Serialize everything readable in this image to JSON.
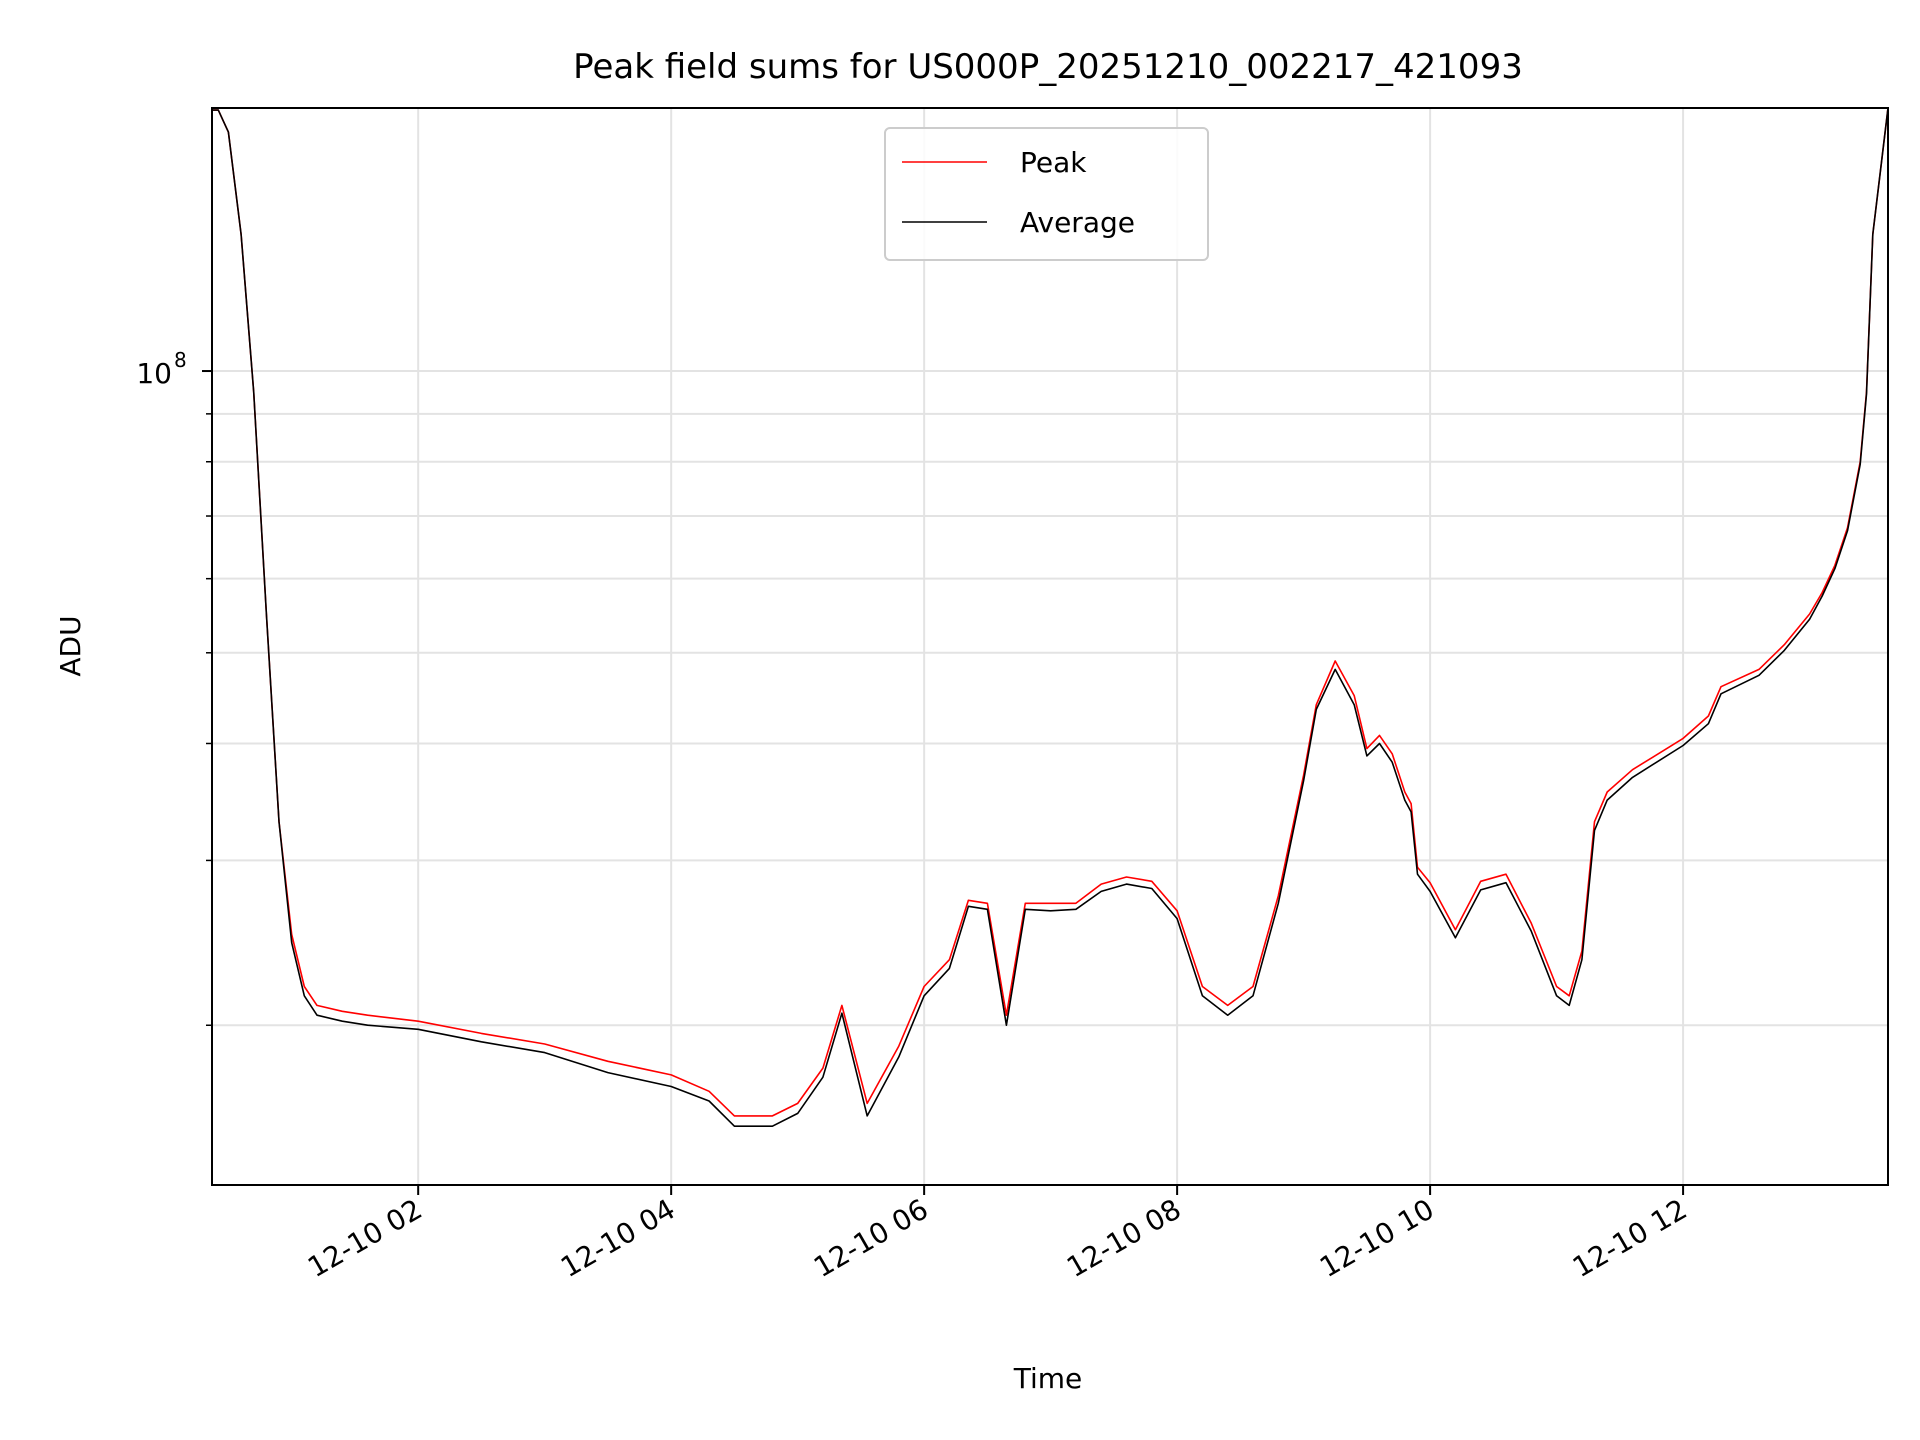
{
  "chart_data": {
    "type": "line",
    "title": "Peak field sums for US000P_20251210_002217_421093",
    "xlabel": "Time",
    "ylabel": "ADU",
    "x_unit": "hours since 12-10 00:00",
    "xlim": [
      0.37,
      13.62
    ],
    "y_scale": "log",
    "ylim": [
      13500000,
      191000000
    ],
    "grid": true,
    "legend_position": "top-center",
    "x_ticks": [
      {
        "value": 2,
        "label": "12-10 02"
      },
      {
        "value": 4,
        "label": "12-10 04"
      },
      {
        "value": 6,
        "label": "12-10 06"
      },
      {
        "value": 8,
        "label": "12-10 08"
      },
      {
        "value": 10,
        "label": "12-10 10"
      },
      {
        "value": 12,
        "label": "12-10 12"
      }
    ],
    "y_major_ticks": [
      {
        "value": 100000000,
        "base": "10",
        "exponent": "8"
      }
    ],
    "y_minor_ticks": [
      20000000,
      30000000,
      40000000,
      50000000,
      60000000,
      70000000,
      80000000,
      90000000,
      200000000
    ],
    "series": [
      {
        "name": "Peak",
        "color": "#ff0000",
        "x": [
          0.37,
          0.42,
          0.5,
          0.6,
          0.7,
          0.8,
          0.9,
          1.0,
          1.1,
          1.2,
          1.4,
          1.6,
          2.0,
          2.5,
          3.0,
          3.5,
          4.0,
          4.3,
          4.5,
          4.8,
          5.0,
          5.2,
          5.35,
          5.55,
          5.8,
          6.0,
          6.2,
          6.35,
          6.5,
          6.65,
          6.8,
          7.0,
          7.2,
          7.4,
          7.6,
          7.8,
          8.0,
          8.2,
          8.4,
          8.6,
          8.8,
          9.0,
          9.1,
          9.25,
          9.4,
          9.5,
          9.6,
          9.7,
          9.8,
          9.85,
          9.9,
          10.0,
          10.2,
          10.4,
          10.6,
          10.8,
          11.0,
          11.1,
          11.2,
          11.3,
          11.4,
          11.6,
          12.0,
          12.2,
          12.3,
          12.6,
          12.8,
          13.0,
          13.1,
          13.2,
          13.3,
          13.4,
          13.45,
          13.5,
          13.62
        ],
        "values": [
          190000000,
          190000000,
          180000000,
          140000000,
          95000000,
          55000000,
          33000000,
          25000000,
          22000000,
          21000000,
          20700000,
          20500000,
          20200000,
          19600000,
          19100000,
          18300000,
          17700000,
          17000000,
          16000000,
          16000000,
          16500000,
          18000000,
          21000000,
          16500000,
          19000000,
          22000000,
          23500000,
          27200000,
          27000000,
          20500000,
          27000000,
          27000000,
          27000000,
          28300000,
          28800000,
          28500000,
          26500000,
          22000000,
          21000000,
          22000000,
          27500000,
          37000000,
          44000000,
          49000000,
          45000000,
          39500000,
          40800000,
          39000000,
          35500000,
          34500000,
          29500000,
          28400000,
          25300000,
          28500000,
          29000000,
          25700000,
          22000000,
          21500000,
          24000000,
          33000000,
          35500000,
          37500000,
          40500000,
          42800000,
          46000000,
          48000000,
          51000000,
          55000000,
          58000000,
          62000000,
          68000000,
          80000000,
          95000000,
          140000000,
          191000000
        ]
      },
      {
        "name": "Average",
        "color": "#000000",
        "x": [
          0.37,
          0.42,
          0.5,
          0.6,
          0.7,
          0.8,
          0.9,
          1.0,
          1.1,
          1.2,
          1.4,
          1.6,
          2.0,
          2.5,
          3.0,
          3.5,
          4.0,
          4.3,
          4.5,
          4.8,
          5.0,
          5.2,
          5.35,
          5.55,
          5.8,
          6.0,
          6.2,
          6.35,
          6.5,
          6.65,
          6.8,
          7.0,
          7.2,
          7.4,
          7.6,
          7.8,
          8.0,
          8.2,
          8.4,
          8.6,
          8.8,
          9.0,
          9.1,
          9.25,
          9.4,
          9.5,
          9.6,
          9.7,
          9.8,
          9.85,
          9.9,
          10.0,
          10.2,
          10.4,
          10.6,
          10.8,
          11.0,
          11.1,
          11.2,
          11.3,
          11.4,
          11.6,
          12.0,
          12.2,
          12.3,
          12.6,
          12.8,
          13.0,
          13.1,
          13.2,
          13.3,
          13.4,
          13.45,
          13.5,
          13.62
        ],
        "values": [
          190000000,
          190000000,
          180000000,
          140000000,
          95000000,
          55000000,
          33000000,
          24500000,
          21500000,
          20500000,
          20200000,
          20000000,
          19800000,
          19200000,
          18700000,
          17800000,
          17200000,
          16600000,
          15600000,
          15600000,
          16100000,
          17600000,
          20600000,
          16000000,
          18500000,
          21500000,
          23000000,
          26800000,
          26600000,
          20000000,
          26600000,
          26500000,
          26600000,
          27800000,
          28300000,
          28000000,
          26000000,
          21500000,
          20500000,
          21500000,
          27000000,
          36500000,
          43500000,
          48000000,
          44000000,
          38800000,
          40000000,
          38200000,
          34800000,
          33800000,
          29000000,
          27800000,
          24800000,
          27900000,
          28400000,
          25200000,
          21500000,
          21000000,
          23500000,
          32300000,
          34800000,
          36800000,
          39800000,
          42000000,
          45200000,
          47300000,
          50300000,
          54300000,
          57500000,
          61500000,
          67500000,
          79500000,
          94500000,
          140000000,
          191000000
        ]
      }
    ]
  }
}
